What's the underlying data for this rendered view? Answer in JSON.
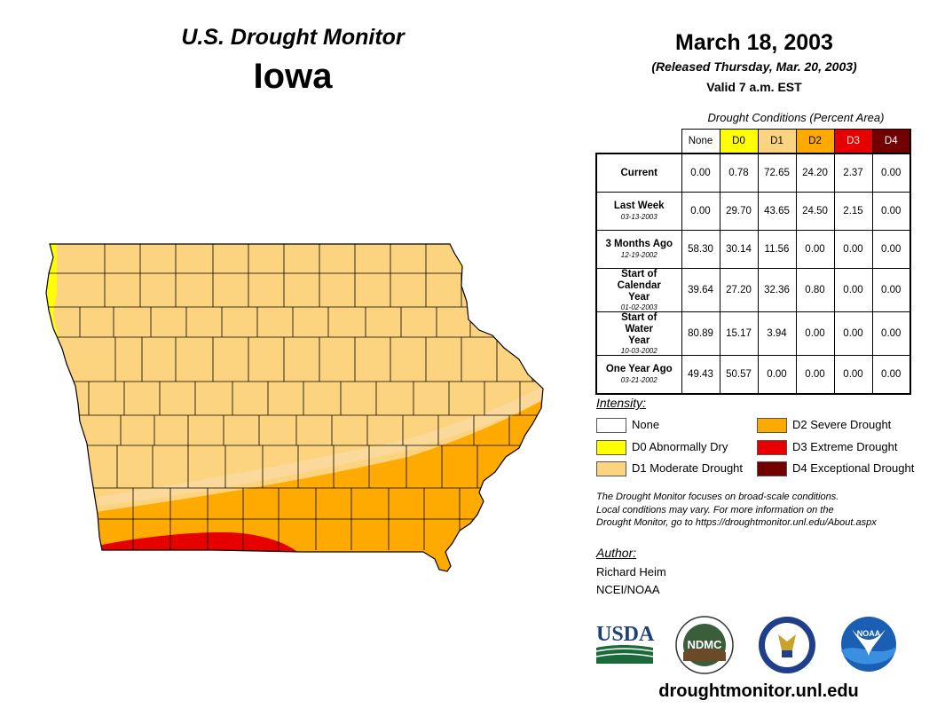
{
  "header": {
    "title": "U.S. Drought Monitor",
    "state": "Iowa",
    "date": "March 18, 2003",
    "released": "(Released Thursday, Mar. 20, 2003)",
    "valid": "Valid 7 a.m. EST"
  },
  "colors": {
    "None": "#ffffff",
    "D0": "#ffff00",
    "D1": "#fcd37f",
    "D2": "#ffaa00",
    "D3": "#e60000",
    "D4": "#730000",
    "county_line": "#000000"
  },
  "table": {
    "caption": "Drought Conditions (Percent Area)",
    "columns": [
      "None",
      "D0",
      "D1",
      "D2",
      "D3",
      "D4"
    ],
    "rows": [
      {
        "label": "Current",
        "sublabel": "",
        "values": [
          "0.00",
          "0.78",
          "72.65",
          "24.20",
          "2.37",
          "0.00"
        ]
      },
      {
        "label": "Last Week",
        "sublabel": "03-13-2003",
        "values": [
          "0.00",
          "29.70",
          "43.65",
          "24.50",
          "2.15",
          "0.00"
        ]
      },
      {
        "label": "3 Months Ago",
        "sublabel": "12-19-2002",
        "values": [
          "58.30",
          "30.14",
          "11.56",
          "0.00",
          "0.00",
          "0.00"
        ]
      },
      {
        "label": "Start of Calendar Year",
        "sublabel": "01-02-2003",
        "values": [
          "39.64",
          "27.20",
          "32.36",
          "0.80",
          "0.00",
          "0.00"
        ]
      },
      {
        "label": "Start of Water Year",
        "sublabel": "10-03-2002",
        "values": [
          "80.89",
          "15.17",
          "3.94",
          "0.00",
          "0.00",
          "0.00"
        ]
      },
      {
        "label": "One Year Ago",
        "sublabel": "03-21-2002",
        "values": [
          "49.43",
          "50.57",
          "0.00",
          "0.00",
          "0.00",
          "0.00"
        ]
      }
    ]
  },
  "legend": {
    "title": "Intensity:",
    "items": [
      {
        "code": "None",
        "label": "None"
      },
      {
        "code": "D0",
        "label": "D0 Abnormally Dry"
      },
      {
        "code": "D1",
        "label": "D1 Moderate Drought"
      },
      {
        "code": "D2",
        "label": "D2 Severe Drought"
      },
      {
        "code": "D3",
        "label": "D3 Extreme Drought"
      },
      {
        "code": "D4",
        "label": "D4 Exceptional Drought"
      }
    ]
  },
  "note": {
    "line1": "The Drought Monitor focuses on broad-scale conditions.",
    "line2": "Local conditions may vary. For more information on the",
    "line3": "Drought Monitor, go to https://droughtmonitor.unl.edu/About.aspx"
  },
  "author": {
    "label": "Author:",
    "name": "Richard Heim",
    "org": "NCEI/NOAA"
  },
  "logos": {
    "usda": "USDA",
    "ndmc": "NDMC",
    "noaa": "NOAA"
  },
  "website": "droughtmonitor.unl.edu"
}
